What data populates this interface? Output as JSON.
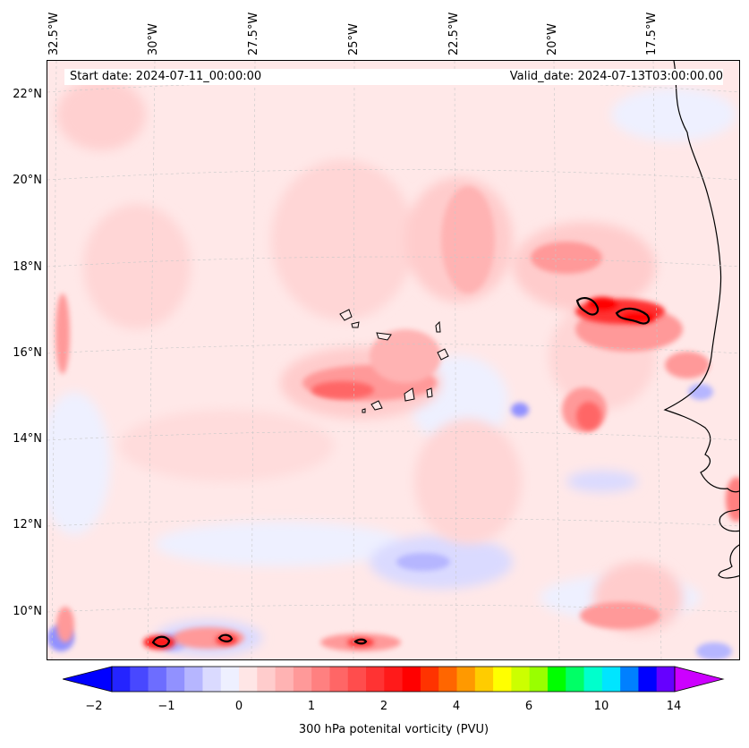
{
  "map": {
    "start_label": "Start date: 2024-07-11_00:00:00",
    "valid_label": "Valid_date: 2024-07-13T03:00:00.00",
    "lon_labels": [
      "32.5°W",
      "30°W",
      "27.5°W",
      "25°W",
      "22.5°W",
      "20°W",
      "17.5°W"
    ],
    "lat_labels": [
      "22°N",
      "20°N",
      "18°N",
      "16°N",
      "14°N",
      "12°N",
      "10°N"
    ]
  },
  "colorbar": {
    "label": "300 hPa potenital vorticity (PVU)",
    "tick_labels": [
      "−2",
      "−1",
      "0",
      "1",
      "2",
      "4",
      "6",
      "10",
      "14"
    ],
    "colors": [
      "#0000ff",
      "#2424ff",
      "#4848ff",
      "#6d6dff",
      "#9191ff",
      "#b6b6ff",
      "#dadaff",
      "#eef0ff",
      "#ffe6e6",
      "#ffcccc",
      "#ffb3b3",
      "#ff9999",
      "#ff8080",
      "#ff6666",
      "#ff4d4d",
      "#ff3333",
      "#ff1a1a",
      "#ff0000",
      "#ff3300",
      "#ff6600",
      "#ff9900",
      "#ffcc00",
      "#ffff00",
      "#ccff00",
      "#99ff00",
      "#00ff00",
      "#00ff66",
      "#00ffcc",
      "#00e5ff",
      "#0080ff",
      "#0000ff",
      "#6600ff",
      "#cc00ff"
    ]
  }
}
